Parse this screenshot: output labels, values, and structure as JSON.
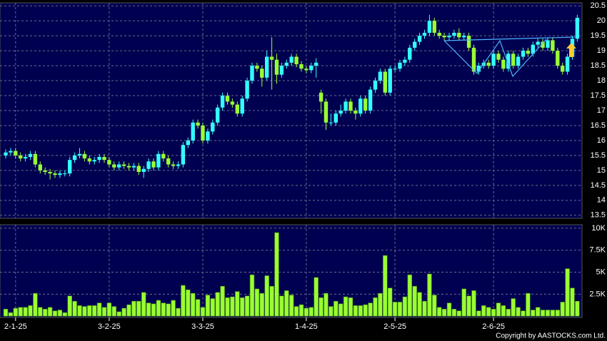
{
  "chart_data": {
    "type": "candlestick",
    "categories": [
      null,
      null,
      "2-1-25",
      null,
      null,
      null,
      null,
      null,
      null,
      null,
      null,
      null,
      null,
      null,
      null,
      null,
      null,
      null,
      null,
      null,
      null,
      "3-2-25",
      null,
      null,
      null,
      null,
      null,
      null,
      null,
      null,
      null,
      null,
      null,
      null,
      null,
      null,
      null,
      null,
      null,
      null,
      "3-3-25",
      null,
      null,
      null,
      null,
      null,
      null,
      null,
      null,
      null,
      null,
      null,
      null,
      null,
      null,
      null,
      null,
      null,
      null,
      null,
      null,
      "1-4-25",
      null,
      null,
      null,
      null,
      null,
      null,
      null,
      null,
      null,
      null,
      null,
      null,
      null,
      null,
      null,
      null,
      null,
      "2-5-25",
      null,
      null,
      null,
      null,
      null,
      null,
      null,
      null,
      null,
      null,
      null,
      null,
      null,
      null,
      null,
      null,
      null,
      null,
      null,
      "2-6-25",
      null,
      null,
      null,
      null,
      null,
      null,
      null,
      null,
      null,
      null,
      null,
      null,
      null,
      null,
      null,
      null,
      null
    ],
    "open": [
      15.5,
      15.6,
      15.65,
      15.5,
      15.4,
      15.45,
      15.55,
      15.2,
      15.0,
      14.95,
      14.9,
      14.85,
      14.9,
      14.9,
      15.35,
      15.5,
      15.55,
      15.4,
      15.3,
      15.35,
      15.45,
      15.35,
      15.2,
      15.1,
      15.2,
      15.15,
      15.1,
      15.15,
      14.95,
      15.05,
      15.3,
      15.1,
      15.55,
      15.4,
      15.2,
      15.15,
      15.2,
      15.85,
      16.0,
      16.6,
      16.5,
      16.0,
      16.3,
      16.6,
      17.1,
      17.5,
      17.3,
      17.2,
      16.9,
      17.4,
      18.0,
      18.5,
      18.4,
      18.1,
      18.8,
      18.7,
      18.2,
      18.5,
      18.6,
      18.8,
      18.55,
      18.4,
      18.35,
      18.5,
      17.6,
      17.3,
      16.6,
      16.6,
      16.9,
      17.0,
      17.3,
      17.0,
      16.9,
      17.4,
      17.0,
      17.7,
      18.0,
      18.3,
      17.6,
      18.4,
      18.4,
      18.6,
      18.7,
      19.1,
      19.3,
      19.5,
      19.6,
      20.0,
      19.6,
      19.5,
      19.45,
      19.5,
      19.6,
      19.45,
      19.5,
      19.1,
      18.3,
      18.5,
      18.6,
      18.5,
      18.9,
      18.7,
      18.4,
      18.9,
      18.5,
      18.8,
      19.0,
      18.9,
      19.2,
      19.3,
      19.1,
      19.35,
      19.0,
      18.5,
      18.3,
      18.8,
      19.4
    ],
    "high": [
      15.7,
      15.75,
      15.75,
      15.6,
      15.55,
      15.65,
      15.65,
      15.3,
      15.1,
      15.05,
      15.0,
      15.0,
      15.0,
      15.45,
      15.6,
      15.75,
      15.65,
      15.5,
      15.45,
      15.55,
      15.55,
      15.45,
      15.3,
      15.3,
      15.3,
      15.25,
      15.25,
      15.25,
      15.15,
      15.4,
      15.4,
      15.65,
      15.65,
      15.5,
      15.3,
      15.3,
      15.95,
      16.1,
      16.7,
      16.7,
      16.6,
      16.4,
      16.7,
      17.2,
      17.6,
      17.6,
      17.4,
      17.3,
      17.5,
      18.1,
      18.6,
      18.6,
      18.5,
      19.0,
      19.45,
      18.9,
      18.6,
      18.7,
      18.9,
      18.9,
      18.65,
      18.5,
      18.6,
      18.75,
      17.7,
      17.4,
      16.9,
      17.0,
      17.2,
      17.4,
      17.4,
      17.1,
      17.5,
      17.5,
      17.8,
      18.1,
      18.4,
      18.4,
      18.5,
      18.5,
      18.7,
      18.8,
      19.2,
      19.4,
      19.6,
      19.7,
      20.2,
      20.1,
      19.7,
      19.6,
      19.6,
      19.7,
      19.75,
      19.6,
      19.6,
      19.2,
      18.6,
      18.7,
      18.7,
      19.0,
      19.0,
      18.8,
      19.0,
      19.0,
      18.9,
      19.1,
      19.1,
      19.3,
      19.4,
      19.4,
      19.45,
      19.45,
      19.1,
      18.6,
      18.9,
      19.5,
      20.2
    ],
    "low": [
      15.4,
      15.5,
      15.4,
      15.3,
      15.3,
      15.35,
      15.1,
      14.9,
      14.85,
      14.7,
      14.75,
      14.75,
      14.8,
      14.8,
      15.25,
      15.4,
      15.3,
      15.2,
      15.2,
      15.25,
      15.25,
      15.1,
      15.0,
      15.0,
      15.05,
      15.0,
      15.0,
      14.85,
      14.75,
      14.95,
      15.0,
      15.0,
      15.3,
      15.1,
      15.05,
      15.05,
      15.1,
      15.75,
      15.9,
      16.4,
      15.9,
      15.9,
      16.2,
      16.5,
      17.0,
      17.2,
      17.1,
      16.8,
      16.8,
      17.3,
      17.9,
      18.3,
      17.8,
      18.0,
      17.7,
      17.9,
      18.1,
      18.4,
      18.5,
      18.45,
      18.3,
      18.25,
      18.25,
      18.1,
      16.9,
      16.35,
      16.5,
      16.5,
      16.8,
      16.9,
      16.9,
      16.7,
      16.8,
      16.9,
      16.9,
      17.6,
      17.9,
      17.5,
      17.5,
      18.3,
      18.3,
      18.5,
      18.6,
      19.0,
      19.2,
      19.4,
      19.5,
      19.5,
      19.4,
      19.35,
      19.35,
      19.4,
      19.35,
      19.35,
      19.0,
      18.2,
      18.2,
      18.4,
      18.4,
      18.4,
      18.6,
      18.3,
      18.3,
      18.4,
      18.4,
      18.7,
      18.8,
      18.8,
      19.1,
      19.0,
      19.0,
      18.9,
      18.4,
      18.2,
      18.2,
      18.7,
      19.3
    ],
    "close": [
      15.6,
      15.65,
      15.5,
      15.4,
      15.45,
      15.55,
      15.2,
      15.0,
      14.95,
      14.9,
      14.85,
      14.9,
      14.9,
      15.35,
      15.5,
      15.55,
      15.4,
      15.3,
      15.35,
      15.45,
      15.35,
      15.2,
      15.1,
      15.2,
      15.15,
      15.1,
      15.15,
      14.95,
      15.05,
      15.3,
      15.1,
      15.55,
      15.4,
      15.2,
      15.15,
      15.2,
      15.85,
      16.0,
      16.6,
      16.5,
      16.0,
      16.3,
      16.6,
      17.1,
      17.5,
      17.3,
      17.2,
      16.9,
      17.4,
      18.0,
      18.5,
      18.4,
      18.1,
      18.8,
      18.7,
      18.2,
      18.5,
      18.6,
      18.8,
      18.55,
      18.4,
      18.35,
      18.5,
      18.6,
      17.3,
      16.6,
      16.6,
      16.9,
      17.0,
      17.3,
      17.0,
      16.9,
      17.4,
      17.0,
      17.7,
      18.0,
      18.3,
      17.6,
      18.4,
      18.4,
      18.6,
      18.7,
      19.1,
      19.3,
      19.5,
      19.6,
      20.0,
      19.6,
      19.5,
      19.45,
      19.5,
      19.6,
      19.45,
      19.5,
      19.1,
      18.3,
      18.5,
      18.6,
      18.5,
      18.9,
      18.7,
      18.4,
      18.9,
      18.5,
      18.8,
      19.0,
      18.9,
      19.2,
      19.3,
      19.1,
      19.35,
      19.0,
      18.5,
      18.3,
      18.8,
      19.4,
      20.1
    ],
    "volume": [
      800,
      400,
      900,
      1000,
      1000,
      1200,
      2600,
      1000,
      800,
      1000,
      600,
      700,
      400,
      2300,
      1700,
      1200,
      1100,
      1200,
      1200,
      1500,
      1000,
      1500,
      1100,
      500,
      900,
      1300,
      1700,
      1700,
      2700,
      1500,
      1400,
      1800,
      1500,
      1400,
      1800,
      900,
      3500,
      3000,
      2600,
      1900,
      1000,
      2400,
      2000,
      2700,
      3400,
      2100,
      2200,
      2800,
      2100,
      2300,
      4700,
      3100,
      2600,
      4600,
      3400,
      9500,
      2300,
      2900,
      2400,
      1100,
      1300,
      900,
      1000,
      4400,
      2100,
      2600,
      1100,
      1700,
      1400,
      2200,
      2100,
      1200,
      1200,
      1300,
      1500,
      2100,
      2600,
      6900,
      3200,
      1600,
      1600,
      2200,
      4700,
      3400,
      2700,
      1700,
      4800,
      2400,
      1000,
      800,
      1500,
      800,
      600,
      3100,
      2300,
      2900,
      600,
      1200,
      1000,
      800,
      1500,
      1200,
      800,
      2000,
      1000,
      600,
      2600,
      700,
      1000,
      700,
      700,
      700,
      700,
      1600,
      5400,
      3200,
      1700
    ],
    "up_color": "#33ffff",
    "down_color": "#99ff33",
    "volume_color": "#99ff33",
    "ylim": [
      13.4,
      20.6
    ],
    "yticks": [
      13.5,
      14,
      14.5,
      15,
      15.5,
      16,
      16.5,
      17,
      17.5,
      18,
      18.5,
      19,
      19.5,
      20,
      20.5
    ],
    "y2lim": [
      -150,
      10400
    ],
    "y2ticks": [
      {
        "value": 2500,
        "label": "2.5K"
      },
      {
        "value": 5000,
        "label": "5K"
      },
      {
        "value": 7500,
        "label": "7.5K"
      },
      {
        "value": 10000,
        "label": "10K"
      }
    ],
    "grid": true,
    "copyright": "Copyright by AASTOCKS.com Ltd."
  }
}
